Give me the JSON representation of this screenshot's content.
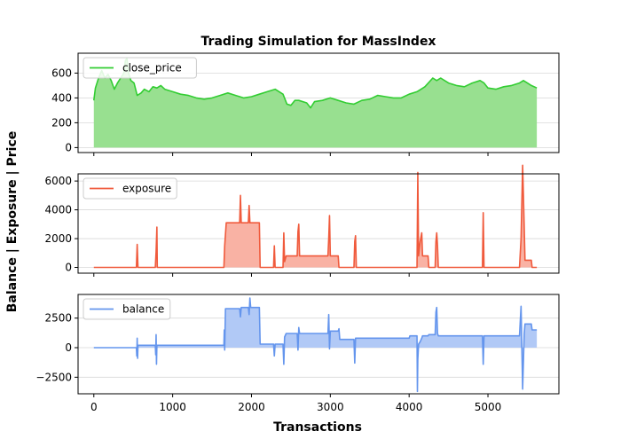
{
  "chart_data": {
    "title": "Trading Simulation for MassIndex",
    "xlabel": "Transactions",
    "ylabel": "Balance | Exposure | Price",
    "xlim": [
      -200,
      5900
    ],
    "xticks": [
      0,
      1000,
      2000,
      3000,
      4000,
      5000
    ],
    "panels": [
      {
        "name": "close_price",
        "type": "area",
        "color": "#32cd32",
        "fill": "#98e090",
        "legend": "close_price",
        "ylim": [
          -40,
          760
        ],
        "yticks": [
          0,
          200,
          400,
          600
        ],
        "points": [
          [
            0,
            380
          ],
          [
            20,
            480
          ],
          [
            60,
            560
          ],
          [
            100,
            620
          ],
          [
            140,
            560
          ],
          [
            180,
            590
          ],
          [
            220,
            540
          ],
          [
            260,
            470
          ],
          [
            300,
            520
          ],
          [
            340,
            560
          ],
          [
            380,
            600
          ],
          [
            400,
            700
          ],
          [
            420,
            720
          ],
          [
            440,
            600
          ],
          [
            470,
            540
          ],
          [
            510,
            520
          ],
          [
            550,
            420
          ],
          [
            600,
            440
          ],
          [
            640,
            470
          ],
          [
            700,
            450
          ],
          [
            750,
            490
          ],
          [
            800,
            480
          ],
          [
            850,
            500
          ],
          [
            900,
            470
          ],
          [
            950,
            460
          ],
          [
            1000,
            450
          ],
          [
            1100,
            430
          ],
          [
            1200,
            420
          ],
          [
            1300,
            400
          ],
          [
            1400,
            390
          ],
          [
            1500,
            400
          ],
          [
            1600,
            420
          ],
          [
            1700,
            440
          ],
          [
            1800,
            420
          ],
          [
            1900,
            400
          ],
          [
            2000,
            410
          ],
          [
            2100,
            430
          ],
          [
            2200,
            450
          ],
          [
            2300,
            470
          ],
          [
            2400,
            430
          ],
          [
            2450,
            350
          ],
          [
            2500,
            340
          ],
          [
            2550,
            380
          ],
          [
            2600,
            380
          ],
          [
            2700,
            360
          ],
          [
            2750,
            320
          ],
          [
            2800,
            370
          ],
          [
            2900,
            380
          ],
          [
            3000,
            400
          ],
          [
            3100,
            380
          ],
          [
            3200,
            360
          ],
          [
            3300,
            350
          ],
          [
            3400,
            380
          ],
          [
            3500,
            390
          ],
          [
            3600,
            420
          ],
          [
            3700,
            410
          ],
          [
            3800,
            400
          ],
          [
            3900,
            400
          ],
          [
            4000,
            430
          ],
          [
            4100,
            450
          ],
          [
            4200,
            490
          ],
          [
            4300,
            560
          ],
          [
            4350,
            540
          ],
          [
            4400,
            560
          ],
          [
            4500,
            520
          ],
          [
            4600,
            500
          ],
          [
            4700,
            490
          ],
          [
            4800,
            520
          ],
          [
            4900,
            540
          ],
          [
            4950,
            520
          ],
          [
            5000,
            480
          ],
          [
            5100,
            470
          ],
          [
            5200,
            490
          ],
          [
            5300,
            500
          ],
          [
            5400,
            520
          ],
          [
            5450,
            540
          ],
          [
            5500,
            520
          ],
          [
            5550,
            500
          ],
          [
            5620,
            480
          ]
        ]
      },
      {
        "name": "exposure",
        "type": "area",
        "color": "#f05a3c",
        "fill": "#f9b2a4",
        "legend": "exposure",
        "ylim": [
          -400,
          6500
        ],
        "yticks": [
          0,
          2000,
          4000,
          6000
        ],
        "points": [
          [
            0,
            0
          ],
          [
            540,
            0
          ],
          [
            550,
            1600
          ],
          [
            560,
            0
          ],
          [
            780,
            0
          ],
          [
            790,
            1100
          ],
          [
            800,
            2800
          ],
          [
            805,
            0
          ],
          [
            1650,
            0
          ],
          [
            1660,
            1500
          ],
          [
            1680,
            3100
          ],
          [
            1850,
            3100
          ],
          [
            1860,
            5000
          ],
          [
            1870,
            3100
          ],
          [
            1960,
            3100
          ],
          [
            1970,
            4300
          ],
          [
            1980,
            3100
          ],
          [
            2100,
            3100
          ],
          [
            2110,
            0
          ],
          [
            2280,
            0
          ],
          [
            2290,
            1500
          ],
          [
            2300,
            0
          ],
          [
            2400,
            0
          ],
          [
            2410,
            2400
          ],
          [
            2420,
            400
          ],
          [
            2440,
            800
          ],
          [
            2580,
            800
          ],
          [
            2590,
            2500
          ],
          [
            2600,
            3000
          ],
          [
            2610,
            800
          ],
          [
            2970,
            800
          ],
          [
            2980,
            2000
          ],
          [
            2990,
            3600
          ],
          [
            3000,
            800
          ],
          [
            3100,
            800
          ],
          [
            3110,
            0
          ],
          [
            3300,
            0
          ],
          [
            3310,
            1800
          ],
          [
            3320,
            2200
          ],
          [
            3330,
            0
          ],
          [
            4100,
            0
          ],
          [
            4110,
            6600
          ],
          [
            4120,
            800
          ],
          [
            4140,
            1800
          ],
          [
            4160,
            2400
          ],
          [
            4170,
            800
          ],
          [
            4240,
            800
          ],
          [
            4250,
            0
          ],
          [
            4330,
            0
          ],
          [
            4340,
            1800
          ],
          [
            4350,
            2400
          ],
          [
            4360,
            1500
          ],
          [
            4370,
            0
          ],
          [
            4930,
            0
          ],
          [
            4940,
            3800
          ],
          [
            4950,
            0
          ],
          [
            5400,
            0
          ],
          [
            5420,
            2000
          ],
          [
            5440,
            7100
          ],
          [
            5460,
            2800
          ],
          [
            5470,
            500
          ],
          [
            5550,
            500
          ],
          [
            5560,
            0
          ],
          [
            5620,
            0
          ]
        ]
      },
      {
        "name": "balance",
        "type": "area",
        "color": "#6495ed",
        "fill": "#b1c9f6",
        "legend": "balance",
        "ylim": [
          -3900,
          4500
        ],
        "yticks": [
          -2500,
          0,
          2500
        ],
        "points": [
          [
            0,
            0
          ],
          [
            540,
            0
          ],
          [
            545,
            -700
          ],
          [
            550,
            800
          ],
          [
            555,
            -900
          ],
          [
            560,
            200
          ],
          [
            780,
            200
          ],
          [
            785,
            -600
          ],
          [
            790,
            1100
          ],
          [
            795,
            -1400
          ],
          [
            800,
            200
          ],
          [
            1650,
            200
          ],
          [
            1655,
            1500
          ],
          [
            1660,
            -200
          ],
          [
            1670,
            3300
          ],
          [
            1850,
            3300
          ],
          [
            1860,
            2600
          ],
          [
            1870,
            3400
          ],
          [
            1960,
            3400
          ],
          [
            1970,
            2800
          ],
          [
            1980,
            4200
          ],
          [
            1990,
            3400
          ],
          [
            2100,
            3400
          ],
          [
            2110,
            300
          ],
          [
            2280,
            300
          ],
          [
            2290,
            -700
          ],
          [
            2300,
            300
          ],
          [
            2400,
            300
          ],
          [
            2410,
            -1400
          ],
          [
            2420,
            900
          ],
          [
            2440,
            1200
          ],
          [
            2580,
            1200
          ],
          [
            2590,
            -200
          ],
          [
            2600,
            1700
          ],
          [
            2610,
            1200
          ],
          [
            2970,
            1200
          ],
          [
            2980,
            2800
          ],
          [
            2990,
            -100
          ],
          [
            3000,
            1400
          ],
          [
            3100,
            1400
          ],
          [
            3110,
            1600
          ],
          [
            3120,
            700
          ],
          [
            3300,
            700
          ],
          [
            3310,
            -1300
          ],
          [
            3320,
            800
          ],
          [
            3330,
            800
          ],
          [
            4000,
            800
          ],
          [
            4010,
            1000
          ],
          [
            4100,
            1000
          ],
          [
            4105,
            -3700
          ],
          [
            4110,
            -1000
          ],
          [
            4120,
            300
          ],
          [
            4140,
            500
          ],
          [
            4160,
            800
          ],
          [
            4170,
            1000
          ],
          [
            4240,
            1000
          ],
          [
            4250,
            1100
          ],
          [
            4330,
            1100
          ],
          [
            4340,
            3000
          ],
          [
            4350,
            3400
          ],
          [
            4360,
            1200
          ],
          [
            4370,
            1000
          ],
          [
            4930,
            1000
          ],
          [
            4940,
            -1400
          ],
          [
            4950,
            1000
          ],
          [
            5400,
            1000
          ],
          [
            5420,
            3500
          ],
          [
            5440,
            -3500
          ],
          [
            5460,
            1200
          ],
          [
            5470,
            2000
          ],
          [
            5550,
            2000
          ],
          [
            5560,
            1500
          ],
          [
            5620,
            1500
          ]
        ]
      }
    ]
  }
}
